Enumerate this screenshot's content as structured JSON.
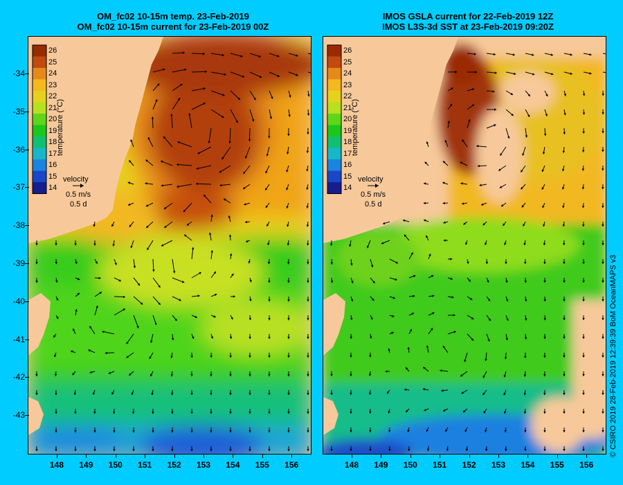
{
  "left_panel": {
    "title_line1": "OM_fc02 10-15m temp. 23-Feb-2019",
    "title_line2": "OM_fc02 10-15m current for 23-Feb-2019 00Z"
  },
  "right_panel": {
    "title_line1": "IMOS GSLA current for 22-Feb-2019 12Z",
    "title_line2": "IMOS L3S-3d SST at 23-Feb-2019 09:20Z"
  },
  "axes": {
    "latitude_ticks": [
      "-34",
      "-35",
      "-36",
      "-37",
      "-38",
      "-39",
      "-40",
      "-41",
      "-42",
      "-43"
    ],
    "longitude_ticks": [
      "148",
      "149",
      "150",
      "151",
      "152",
      "153",
      "154",
      "155",
      "156"
    ],
    "lat_range": [
      -44.0,
      -33.0
    ],
    "lon_range": [
      147.15,
      156.8
    ]
  },
  "colorbar": {
    "title": "temperature (°C)",
    "labels": [
      "26",
      "25",
      "24",
      "23",
      "22",
      "21",
      "20",
      "19",
      "18",
      "17",
      "16",
      "15",
      "14"
    ],
    "colors": [
      "#9a2a00",
      "#c24a10",
      "#e58a1a",
      "#f4b820",
      "#e6d21e",
      "#b8e020",
      "#5ed61a",
      "#1dc61a",
      "#10c070",
      "#18b6c8",
      "#1a84e0",
      "#1a46c8",
      "#161d8c"
    ]
  },
  "velocity_legend": {
    "label": "velocity",
    "speed": "0.5 m/s",
    "duration": "0.5 d"
  },
  "credit": "© CSIRO 2019   28-Feb-2019 12:39:39 BoM OceanMAPS v3",
  "colors": {
    "background": "#00ccff",
    "land": "#f7c99a",
    "arrow": "#000000"
  }
}
